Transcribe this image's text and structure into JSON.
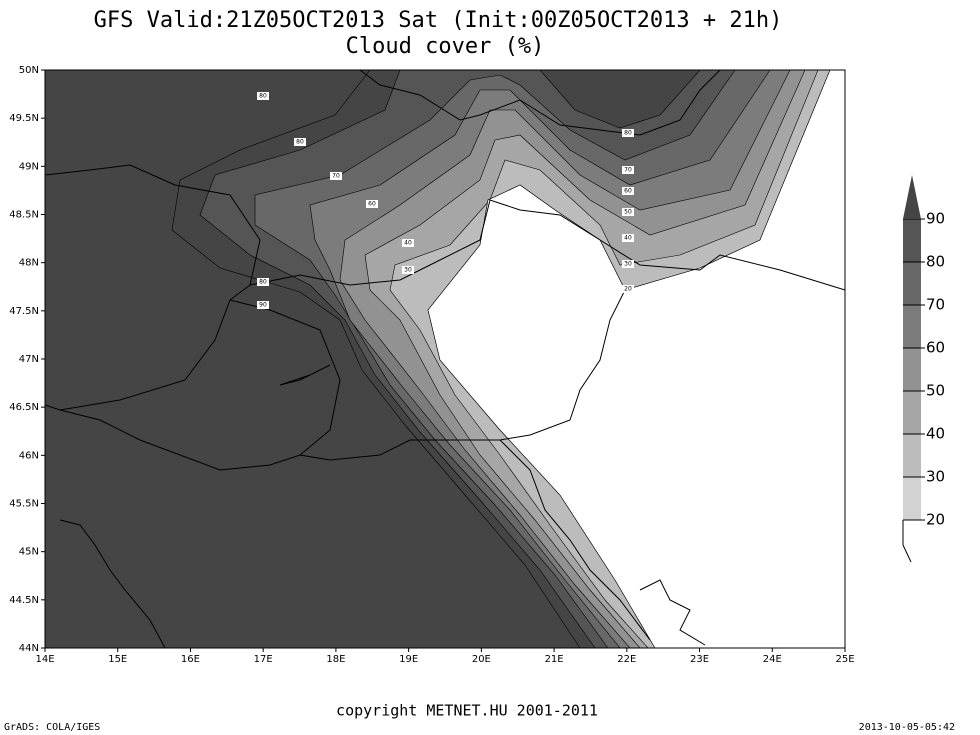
{
  "header": {
    "title": "GFS Valid:21Z05OCT2013 Sat (Init:00Z05OCT2013 + 21h)",
    "subtitle": "Cloud cover (%)"
  },
  "map": {
    "xlim": [
      14,
      25
    ],
    "ylim": [
      44,
      50
    ],
    "xticks": [
      {
        "value": 14,
        "label": "14E"
      },
      {
        "value": 15,
        "label": "15E"
      },
      {
        "value": 16,
        "label": "16E"
      },
      {
        "value": 17,
        "label": "17E"
      },
      {
        "value": 18,
        "label": "18E"
      },
      {
        "value": 19,
        "label": "19E"
      },
      {
        "value": 20,
        "label": "20E"
      },
      {
        "value": 21,
        "label": "21E"
      },
      {
        "value": 22,
        "label": "22E"
      },
      {
        "value": 23,
        "label": "23E"
      },
      {
        "value": 24,
        "label": "24E"
      },
      {
        "value": 25,
        "label": "25E"
      }
    ],
    "yticks": [
      {
        "value": 44,
        "label": "44N"
      },
      {
        "value": 44.5,
        "label": "44.5N"
      },
      {
        "value": 45,
        "label": "45N"
      },
      {
        "value": 45.5,
        "label": "45.5N"
      },
      {
        "value": 46,
        "label": "46N"
      },
      {
        "value": 46.5,
        "label": "46.5N"
      },
      {
        "value": 47,
        "label": "47N"
      },
      {
        "value": 47.5,
        "label": "47.5N"
      },
      {
        "value": 48,
        "label": "48N"
      },
      {
        "value": 48.5,
        "label": "48.5N"
      },
      {
        "value": 49,
        "label": "49N"
      },
      {
        "value": 49.5,
        "label": "49.5N"
      },
      {
        "value": 50,
        "label": "50N"
      }
    ]
  },
  "colorbar": {
    "levels": [
      20,
      30,
      40,
      50,
      60,
      70,
      80,
      90
    ],
    "colors": [
      "#d2d2d2",
      "#bcbcbc",
      "#a6a6a6",
      "#929292",
      "#7c7c7c",
      "#686868",
      "#555555",
      "#454545"
    ]
  },
  "contour_labels": [
    80,
    80,
    70,
    60,
    40,
    30,
    80,
    90,
    80,
    70,
    60,
    50,
    40,
    30,
    20
  ],
  "copyright": "copyright METNET.HU 2001-2011",
  "footer_left": "GrADS: COLA/IGES",
  "footer_right": "2013-10-05-05:42"
}
